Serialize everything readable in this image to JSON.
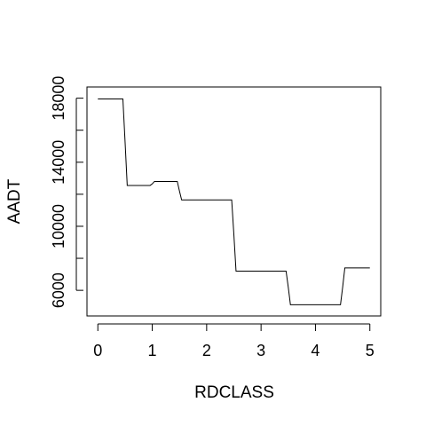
{
  "chart_data": {
    "type": "line",
    "title": "",
    "xlabel": "RDCLASS",
    "ylabel": "AADT",
    "xlim": [
      -0.2,
      5.2
    ],
    "ylim": [
      4400,
      18700
    ],
    "x_ticks": [
      0,
      1,
      2,
      3,
      4,
      5
    ],
    "x_tick_labels": [
      "0",
      "1",
      "2",
      "3",
      "4",
      "5"
    ],
    "y_ticks": [
      6000,
      8000,
      10000,
      12000,
      14000,
      16000,
      18000
    ],
    "y_tick_labels": [
      "6000",
      "",
      "10000",
      "",
      "14000",
      "",
      "18000"
    ],
    "grid": false,
    "line_color": "#000000",
    "series": [
      {
        "x": [
          0,
          0.46,
          0.5,
          0.54,
          0.96,
          1.0,
          1.04,
          1.46,
          1.5,
          1.54,
          2.46,
          2.5,
          2.54,
          3.46,
          3.5,
          3.54,
          4.46,
          4.5,
          4.54,
          5.0
        ],
        "y": [
          17950,
          17950,
          15300,
          12550,
          12550,
          12650,
          12800,
          12800,
          12200,
          11650,
          11650,
          9500,
          7200,
          7200,
          6200,
          5100,
          5100,
          6200,
          7400,
          7400
        ]
      }
    ]
  }
}
